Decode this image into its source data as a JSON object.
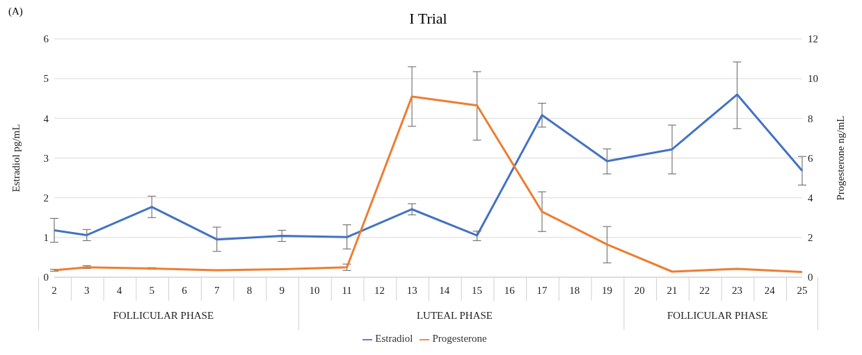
{
  "chart_data": {
    "type": "line",
    "title": "I Trial",
    "ylabel": "Estradiol pg/mL",
    "y2label": "Progesterone ng/mL",
    "annotations": [
      "(A)",
      "FOLLICULAR PHASE",
      "LUTEAL PHASE",
      "FOLLICULAR PHASE"
    ],
    "categories": [
      "2",
      "3",
      "4",
      "5",
      "6",
      "7",
      "8",
      "9",
      "10",
      "11",
      "12",
      "13",
      "14",
      "15",
      "16",
      "17",
      "18",
      "19",
      "20",
      "21",
      "22",
      "23",
      "24",
      "25"
    ],
    "series": [
      {
        "name": "Estradiol",
        "color": "#4472c4",
        "values": [
          1.18,
          1.06,
          null,
          1.77,
          null,
          0.95,
          null,
          1.04,
          null,
          1.01,
          null,
          1.71,
          null,
          1.05,
          null,
          4.08,
          null,
          2.92,
          null,
          3.22,
          null,
          4.6,
          null,
          2.68
        ],
        "errors": [
          [
            0.88,
            1.48
          ],
          [
            0.92,
            1.2
          ],
          null,
          [
            1.5,
            2.04
          ],
          null,
          [
            0.65,
            1.26
          ],
          null,
          [
            0.9,
            1.18
          ],
          null,
          [
            0.71,
            1.32
          ],
          null,
          [
            1.57,
            1.85
          ],
          null,
          [
            0.92,
            1.16
          ],
          null,
          [
            3.78,
            4.38
          ],
          null,
          [
            2.6,
            3.23
          ],
          null,
          [
            2.6,
            3.83
          ],
          null,
          [
            3.74,
            5.42
          ],
          null,
          [
            2.32,
            3.04
          ]
        ]
      },
      {
        "name": "Progesterone",
        "color": "#ed7d31",
        "axis": "y2",
        "values": [
          0.35,
          0.5,
          null,
          0.44,
          null,
          0.35,
          null,
          0.4,
          null,
          0.5,
          null,
          9.1,
          null,
          8.65,
          null,
          3.3,
          null,
          1.65,
          null,
          0.28,
          null,
          0.42,
          null,
          0.26
        ],
        "errors": [
          [
            0.3,
            0.4
          ],
          [
            0.44,
            0.58
          ],
          null,
          [
            0.4,
            0.48
          ],
          null,
          null,
          null,
          null,
          null,
          [
            0.34,
            0.66
          ],
          null,
          [
            7.6,
            10.6
          ],
          null,
          [
            6.9,
            10.35
          ],
          null,
          [
            2.3,
            4.3
          ],
          null,
          [
            0.72,
            2.55
          ],
          null,
          null,
          null,
          null,
          null,
          null
        ]
      }
    ],
    "ylim": [
      0,
      6
    ],
    "yticks": [
      0,
      1,
      2,
      3,
      4,
      5,
      6
    ],
    "y2lim": [
      0,
      12
    ],
    "y2ticks": [
      0,
      2,
      4,
      6,
      8,
      10,
      12
    ],
    "grid": "y",
    "legend": "bottom",
    "marker": "none",
    "line_style": "solid"
  }
}
